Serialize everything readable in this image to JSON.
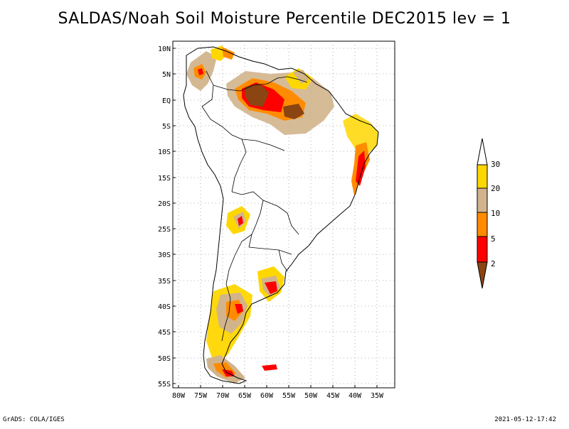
{
  "title": "SALDAS/Noah Soil Moisture Percentile DEC2015 lev = 1",
  "footer_left": "GrADS: COLA/IGES",
  "footer_right": "2021-05-12-17:42",
  "lat_labels": [
    "10N",
    "5N",
    "EQ",
    "5S",
    "10S",
    "15S",
    "20S",
    "25S",
    "30S",
    "35S",
    "40S",
    "45S",
    "50S",
    "55S"
  ],
  "lon_labels": [
    "80W",
    "75W",
    "70W",
    "65W",
    "60W",
    "55W",
    "50W",
    "45W",
    "40W",
    "35W"
  ],
  "legend": {
    "ticks": [
      "30",
      "20",
      "10",
      "5",
      "2"
    ],
    "colors": {
      "above30": "#ffffff",
      "20_30": "#ffd700",
      "10_20": "#d2b48c",
      "5_10": "#ff8c00",
      "2_5": "#ff0000",
      "below2": "#8b4513"
    }
  }
}
